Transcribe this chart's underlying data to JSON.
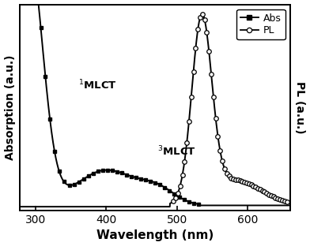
{
  "xlabel": "Wavelength (nm)",
  "ylabel_left": "Absorption (a.u.)",
  "ylabel_right": "PL (a.u.)",
  "xlim": [
    278,
    660
  ],
  "ylim_abs": [
    -0.02,
    0.78
  ],
  "ylim_pl": [
    -0.02,
    1.05
  ],
  "xticks": [
    300,
    400,
    500,
    600
  ],
  "legend_abs": "Abs",
  "legend_pl": "PL",
  "annotation1": "$^1$MLCT",
  "annotation2": "$^3$MLCT",
  "background": "#ffffff",
  "line_color": "#000000"
}
